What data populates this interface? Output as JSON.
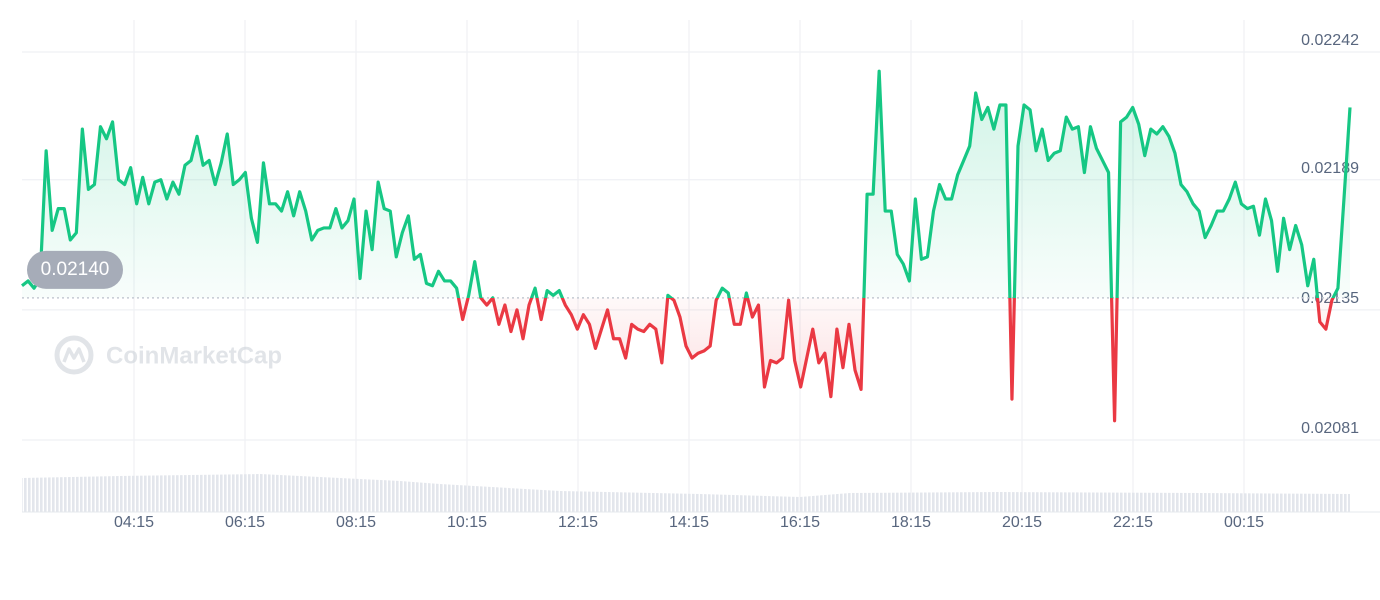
{
  "chart_data": {
    "type": "line",
    "watermark": "CoinMarketCap",
    "reference": {
      "value": 0.0214,
      "label": "0.02140"
    },
    "ylim": [
      0.02081,
      0.02242
    ],
    "yticks": [
      0.02081,
      0.02135,
      0.02189,
      0.02242
    ],
    "xticks": [
      "04:15",
      "06:15",
      "08:15",
      "10:15",
      "12:15",
      "14:15",
      "16:15",
      "18:15",
      "20:15",
      "22:15",
      "00:15"
    ],
    "grid": true,
    "up_color": "#16c784",
    "down_color": "#ea3943",
    "values": [
      0.02145,
      0.02147,
      0.02144,
      0.02148,
      0.02201,
      0.02168,
      0.02177,
      0.02177,
      0.02164,
      0.02167,
      0.0221,
      0.02185,
      0.02187,
      0.02211,
      0.02206,
      0.02213,
      0.02189,
      0.02187,
      0.02194,
      0.02179,
      0.0219,
      0.02179,
      0.02188,
      0.02189,
      0.02181,
      0.02188,
      0.02183,
      0.02195,
      0.02197,
      0.02207,
      0.02195,
      0.02197,
      0.02187,
      0.02196,
      0.02208,
      0.02187,
      0.02189,
      0.02192,
      0.02173,
      0.02163,
      0.02196,
      0.02179,
      0.02179,
      0.02176,
      0.02184,
      0.02174,
      0.02184,
      0.02176,
      0.02164,
      0.02168,
      0.02169,
      0.02169,
      0.02177,
      0.02169,
      0.02172,
      0.02181,
      0.02148,
      0.02176,
      0.0216,
      0.02188,
      0.02177,
      0.02176,
      0.02157,
      0.02167,
      0.02174,
      0.02156,
      0.02158,
      0.02146,
      0.02145,
      0.02151,
      0.02147,
      0.02147,
      0.02144,
      0.02131,
      0.02141,
      0.02155,
      0.0214,
      0.02137,
      0.0214,
      0.02129,
      0.02137,
      0.02126,
      0.02135,
      0.02123,
      0.02137,
      0.02144,
      0.02131,
      0.02143,
      0.02141,
      0.02143,
      0.02137,
      0.02133,
      0.02127,
      0.02133,
      0.02129,
      0.02119,
      0.02127,
      0.02135,
      0.02123,
      0.02123,
      0.02115,
      0.02129,
      0.02127,
      0.02126,
      0.02129,
      0.02127,
      0.02113,
      0.02141,
      0.02139,
      0.02132,
      0.0212,
      0.02115,
      0.02117,
      0.02118,
      0.0212,
      0.02139,
      0.02144,
      0.02142,
      0.02129,
      0.02129,
      0.02142,
      0.02132,
      0.02137,
      0.02103,
      0.02114,
      0.02113,
      0.02115,
      0.02139,
      0.02114,
      0.02103,
      0.02115,
      0.02127,
      0.02113,
      0.02117,
      0.02099,
      0.02127,
      0.02111,
      0.02129,
      0.0211,
      0.02102,
      0.02183,
      0.02183,
      0.02234,
      0.02176,
      0.02176,
      0.02158,
      0.02154,
      0.02147,
      0.02181,
      0.02156,
      0.02157,
      0.02176,
      0.02187,
      0.02181,
      0.02181,
      0.02191,
      0.02197,
      0.02203,
      0.02225,
      0.02214,
      0.02219,
      0.0221,
      0.0222,
      0.0222,
      0.02098,
      0.02203,
      0.0222,
      0.02218,
      0.02201,
      0.0221,
      0.02197,
      0.022,
      0.02201,
      0.02215,
      0.0221,
      0.02211,
      0.02192,
      0.02211,
      0.02202,
      0.02197,
      0.02192,
      0.02089,
      0.02213,
      0.02215,
      0.02219,
      0.02212,
      0.02199,
      0.0221,
      0.02208,
      0.02211,
      0.02207,
      0.022,
      0.02187,
      0.02184,
      0.02179,
      0.02176,
      0.02165,
      0.0217,
      0.02176,
      0.02176,
      0.02181,
      0.02188,
      0.02179,
      0.02177,
      0.02178,
      0.02166,
      0.02181,
      0.02172,
      0.02151,
      0.02173,
      0.0216,
      0.0217,
      0.02162,
      0.02145,
      0.02156,
      0.0213,
      0.02127,
      0.02139,
      0.02144,
      0.02181,
      0.02219
    ]
  }
}
